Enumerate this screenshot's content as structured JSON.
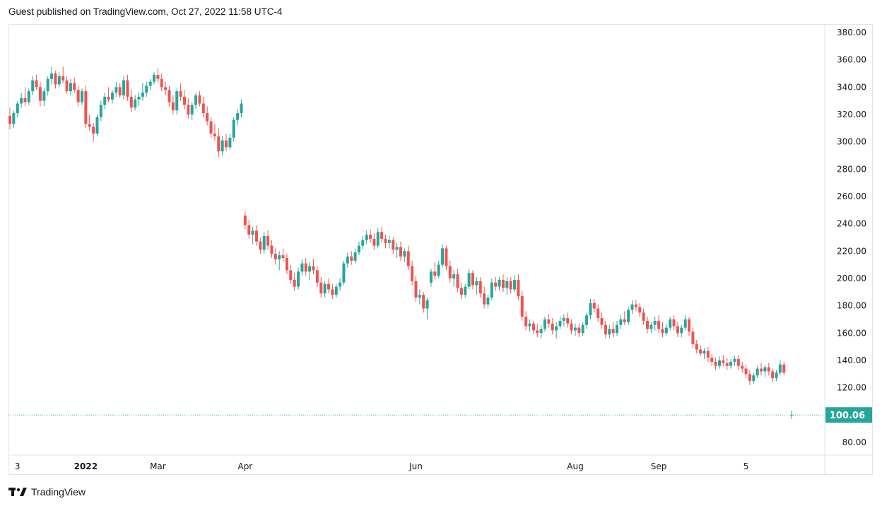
{
  "header": {
    "text": "Guest published on TradingView.com, Oct 27, 2022 11:58 UTC-4"
  },
  "footer": {
    "brand": "TradingView"
  },
  "colors": {
    "up": "#26a69a",
    "down": "#ef5350",
    "price_line": "#26a69a",
    "grid_border": "#e0e3eb"
  },
  "chart_data": {
    "type": "candlestick",
    "y_ticks": [
      "380.00",
      "360.00",
      "340.00",
      "320.00",
      "300.00",
      "280.00",
      "260.00",
      "240.00",
      "220.00",
      "200.00",
      "180.00",
      "160.00",
      "140.00",
      "120.00",
      "100.00",
      "80.00"
    ],
    "ylim": [
      80,
      380
    ],
    "x_ticks": [
      {
        "label": "3",
        "i": 2,
        "bold": false
      },
      {
        "label": "2022",
        "i": 20,
        "bold": true
      },
      {
        "label": "Mar",
        "i": 39,
        "bold": false
      },
      {
        "label": "Apr",
        "i": 62,
        "bold": false
      },
      {
        "label": "Jun",
        "i": 107,
        "bold": false
      },
      {
        "label": "Aug",
        "i": 149,
        "bold": false
      },
      {
        "label": "Sep",
        "i": 171,
        "bold": false
      },
      {
        "label": "5",
        "i": 194,
        "bold": false
      }
    ],
    "last_price": {
      "label": "100.06",
      "value": 100.06
    },
    "candles": [
      [
        319,
        325,
        309,
        313
      ],
      [
        313,
        323,
        310,
        321
      ],
      [
        321,
        330,
        318,
        328
      ],
      [
        328,
        336,
        325,
        332
      ],
      [
        332,
        340,
        326,
        329
      ],
      [
        329,
        339,
        327,
        337
      ],
      [
        337,
        348,
        334,
        345
      ],
      [
        345,
        349,
        338,
        340
      ],
      [
        340,
        344,
        326,
        330
      ],
      [
        330,
        339,
        326,
        337
      ],
      [
        337,
        348,
        334,
        346
      ],
      [
        346,
        355,
        342,
        350
      ],
      [
        350,
        352,
        339,
        342
      ],
      [
        342,
        351,
        340,
        348
      ],
      [
        348,
        355,
        343,
        345
      ],
      [
        345,
        348,
        335,
        337
      ],
      [
        337,
        346,
        334,
        343
      ],
      [
        343,
        347,
        336,
        338
      ],
      [
        338,
        341,
        326,
        329
      ],
      [
        329,
        339,
        327,
        337
      ],
      [
        337,
        341,
        310,
        313
      ],
      [
        313,
        320,
        308,
        311
      ],
      [
        311,
        314,
        300,
        306
      ],
      [
        306,
        320,
        304,
        318
      ],
      [
        318,
        330,
        315,
        327
      ],
      [
        327,
        336,
        324,
        333
      ],
      [
        333,
        340,
        329,
        331
      ],
      [
        331,
        338,
        328,
        336
      ],
      [
        336,
        344,
        333,
        340
      ],
      [
        340,
        343,
        332,
        334
      ],
      [
        334,
        348,
        331,
        345
      ],
      [
        345,
        349,
        330,
        333
      ],
      [
        333,
        338,
        322,
        325
      ],
      [
        325,
        334,
        323,
        331
      ],
      [
        331,
        336,
        326,
        333
      ],
      [
        333,
        343,
        330,
        336
      ],
      [
        336,
        344,
        333,
        341
      ],
      [
        341,
        346,
        338,
        344
      ],
      [
        344,
        351,
        342,
        349
      ],
      [
        349,
        354,
        343,
        346
      ],
      [
        346,
        350,
        337,
        340
      ],
      [
        340,
        344,
        334,
        338
      ],
      [
        338,
        341,
        326,
        329
      ],
      [
        329,
        334,
        320,
        323
      ],
      [
        323,
        339,
        320,
        337
      ],
      [
        337,
        343,
        330,
        333
      ],
      [
        333,
        338,
        324,
        327
      ],
      [
        327,
        332,
        317,
        320
      ],
      [
        320,
        329,
        316,
        327
      ],
      [
        327,
        336,
        324,
        334
      ],
      [
        334,
        337,
        326,
        328
      ],
      [
        328,
        333,
        318,
        321
      ],
      [
        321,
        326,
        312,
        315
      ],
      [
        315,
        318,
        303,
        306
      ],
      [
        306,
        313,
        301,
        304
      ],
      [
        304,
        310,
        289,
        293
      ],
      [
        293,
        304,
        290,
        301
      ],
      [
        301,
        306,
        293,
        296
      ],
      [
        296,
        306,
        294,
        303
      ],
      [
        303,
        318,
        300,
        316
      ],
      [
        316,
        324,
        312,
        321
      ],
      [
        321,
        331,
        318,
        328
      ],
      [
        246,
        249,
        236,
        239
      ],
      [
        239,
        243,
        229,
        232
      ],
      [
        232,
        238,
        225,
        235
      ],
      [
        235,
        239,
        224,
        227
      ],
      [
        227,
        230,
        218,
        221
      ],
      [
        221,
        234,
        218,
        231
      ],
      [
        231,
        235,
        221,
        224
      ],
      [
        224,
        228,
        215,
        218
      ],
      [
        218,
        222,
        210,
        214
      ],
      [
        214,
        220,
        206,
        217
      ],
      [
        217,
        222,
        212,
        215
      ],
      [
        215,
        218,
        203,
        206
      ],
      [
        206,
        210,
        196,
        199
      ],
      [
        199,
        204,
        191,
        194
      ],
      [
        194,
        208,
        192,
        205
      ],
      [
        205,
        214,
        202,
        211
      ],
      [
        211,
        215,
        202,
        205
      ],
      [
        205,
        212,
        199,
        209
      ],
      [
        209,
        214,
        203,
        206
      ],
      [
        206,
        209,
        194,
        197
      ],
      [
        197,
        201,
        186,
        189
      ],
      [
        189,
        198,
        186,
        196
      ],
      [
        196,
        200,
        189,
        192
      ],
      [
        192,
        196,
        185,
        188
      ],
      [
        188,
        196,
        186,
        194
      ],
      [
        194,
        200,
        191,
        197
      ],
      [
        197,
        213,
        195,
        211
      ],
      [
        211,
        219,
        208,
        216
      ],
      [
        216,
        220,
        210,
        213
      ],
      [
        213,
        222,
        211,
        219
      ],
      [
        219,
        227,
        217,
        224
      ],
      [
        224,
        231,
        221,
        228
      ],
      [
        228,
        235,
        225,
        232
      ],
      [
        232,
        236,
        226,
        229
      ],
      [
        229,
        233,
        221,
        224
      ],
      [
        224,
        237,
        222,
        234
      ],
      [
        234,
        238,
        226,
        229
      ],
      [
        229,
        232,
        222,
        226
      ],
      [
        226,
        231,
        222,
        228
      ],
      [
        228,
        230,
        218,
        221
      ],
      [
        221,
        226,
        215,
        223
      ],
      [
        223,
        227,
        213,
        216
      ],
      [
        216,
        222,
        212,
        220
      ],
      [
        220,
        224,
        206,
        209
      ],
      [
        209,
        213,
        195,
        198
      ],
      [
        198,
        202,
        183,
        186
      ],
      [
        186,
        192,
        181,
        188
      ],
      [
        188,
        190,
        175,
        178
      ],
      [
        178,
        186,
        170,
        184
      ],
      [
        197,
        207,
        194,
        205
      ],
      [
        205,
        212,
        199,
        202
      ],
      [
        202,
        213,
        200,
        210
      ],
      [
        210,
        225,
        208,
        222
      ],
      [
        222,
        224,
        206,
        209
      ],
      [
        209,
        213,
        197,
        200
      ],
      [
        200,
        206,
        194,
        203
      ],
      [
        203,
        207,
        190,
        193
      ],
      [
        193,
        197,
        185,
        188
      ],
      [
        188,
        196,
        186,
        194
      ],
      [
        194,
        207,
        192,
        204
      ],
      [
        204,
        206,
        192,
        195
      ],
      [
        195,
        201,
        188,
        198
      ],
      [
        198,
        201,
        186,
        189
      ],
      [
        189,
        194,
        178,
        181
      ],
      [
        181,
        188,
        178,
        186
      ],
      [
        186,
        200,
        184,
        197
      ],
      [
        197,
        201,
        191,
        194
      ],
      [
        194,
        201,
        191,
        199
      ],
      [
        199,
        203,
        190,
        193
      ],
      [
        193,
        201,
        188,
        198
      ],
      [
        198,
        201,
        189,
        192
      ],
      [
        192,
        202,
        190,
        199
      ],
      [
        199,
        203,
        184,
        187
      ],
      [
        187,
        191,
        169,
        172
      ],
      [
        172,
        176,
        162,
        165
      ],
      [
        165,
        170,
        161,
        167
      ],
      [
        167,
        169,
        159,
        162
      ],
      [
        162,
        167,
        157,
        160
      ],
      [
        160,
        166,
        156,
        163
      ],
      [
        163,
        172,
        161,
        170
      ],
      [
        170,
        174,
        164,
        167
      ],
      [
        167,
        171,
        159,
        162
      ],
      [
        162,
        168,
        156,
        165
      ],
      [
        165,
        172,
        163,
        169
      ],
      [
        169,
        174,
        165,
        171
      ],
      [
        171,
        175,
        164,
        167
      ],
      [
        167,
        170,
        159,
        162
      ],
      [
        162,
        167,
        158,
        164
      ],
      [
        164,
        167,
        157,
        160
      ],
      [
        160,
        168,
        158,
        166
      ],
      [
        166,
        175,
        163,
        173
      ],
      [
        173,
        185,
        170,
        182
      ],
      [
        182,
        185,
        175,
        178
      ],
      [
        178,
        181,
        168,
        171
      ],
      [
        171,
        175,
        163,
        166
      ],
      [
        166,
        169,
        156,
        159
      ],
      [
        159,
        166,
        156,
        163
      ],
      [
        163,
        168,
        157,
        160
      ],
      [
        160,
        169,
        158,
        166
      ],
      [
        166,
        173,
        163,
        170
      ],
      [
        170,
        176,
        166,
        168
      ],
      [
        168,
        179,
        166,
        177
      ],
      [
        177,
        184,
        174,
        181
      ],
      [
        181,
        184,
        176,
        179
      ],
      [
        179,
        182,
        172,
        175
      ],
      [
        175,
        178,
        166,
        169
      ],
      [
        169,
        172,
        160,
        163
      ],
      [
        163,
        168,
        160,
        166
      ],
      [
        166,
        172,
        162,
        169
      ],
      [
        169,
        173,
        160,
        163
      ],
      [
        163,
        168,
        157,
        160
      ],
      [
        160,
        167,
        158,
        164
      ],
      [
        164,
        172,
        162,
        170
      ],
      [
        170,
        173,
        162,
        165
      ],
      [
        165,
        168,
        157,
        160
      ],
      [
        160,
        166,
        157,
        164
      ],
      [
        164,
        173,
        162,
        170
      ],
      [
        170,
        172,
        158,
        161
      ],
      [
        161,
        164,
        149,
        152
      ],
      [
        152,
        155,
        145,
        148
      ],
      [
        148,
        151,
        143,
        145
      ],
      [
        145,
        149,
        141,
        147
      ],
      [
        147,
        150,
        139,
        142
      ],
      [
        142,
        145,
        136,
        139
      ],
      [
        139,
        142,
        133,
        136
      ],
      [
        136,
        143,
        134,
        140
      ],
      [
        140,
        144,
        136,
        138
      ],
      [
        138,
        142,
        133,
        136
      ],
      [
        136,
        141,
        134,
        139
      ],
      [
        139,
        143,
        136,
        141
      ],
      [
        141,
        144,
        133,
        136
      ],
      [
        136,
        139,
        131,
        134
      ],
      [
        134,
        137,
        127,
        130
      ],
      [
        130,
        133,
        122,
        125
      ],
      [
        125,
        131,
        123,
        129
      ],
      [
        129,
        136,
        127,
        134
      ],
      [
        134,
        138,
        129,
        132
      ],
      [
        132,
        137,
        128,
        135
      ],
      [
        135,
        138,
        129,
        132
      ],
      [
        132,
        134,
        124,
        127
      ],
      [
        127,
        133,
        125,
        131
      ],
      [
        131,
        140,
        129,
        137
      ],
      [
        137,
        139,
        129,
        131
      ],
      null,
      [
        100,
        103,
        97,
        100.06
      ]
    ]
  }
}
